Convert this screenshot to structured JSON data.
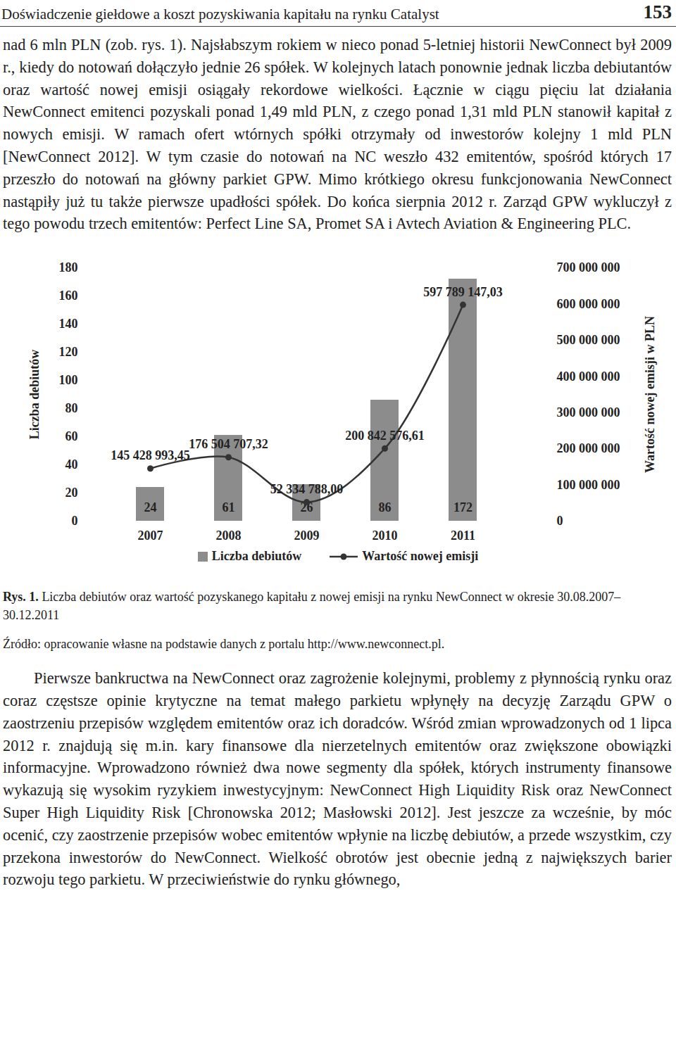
{
  "header": {
    "title": "Doświadczenie giełdowe a koszt pozyskiwania kapitału na rynku Catalyst",
    "page": "153"
  },
  "paragraphs_before": [
    "nad 6 mln PLN (zob. rys. 1). Najsłabszym rokiem w nieco ponad 5-letniej historii NewConnect był 2009 r., kiedy do notowań dołączyło jednie 26 spółek. W kolejnych latach ponownie jednak liczba debiutantów oraz wartość nowej emisji osiągały rekordowe wielkości. Łącznie w ciągu pięciu lat działania NewConnect emitenci pozyskali ponad 1,49 mld PLN, z czego ponad 1,31 mld PLN stanowił kapitał z nowych emisji. W ramach ofert wtórnych spółki otrzymały od inwestorów kolejny 1 mld PLN [NewConnect 2012]. W tym czasie do notowań na NC weszło 432 emitentów, spośród których 17 przeszło do notowań na główny parkiet GPW. Mimo krótkiego okresu funkcjonowania NewConnect nastąpiły już tu także pierwsze upadłości spółek. Do końca sierpnia 2012 r. Zarząd GPW wykluczył z tego powodu trzech emitentów: Perfect Line SA, Promet SA i Avtech Aviation & Engineering PLC."
  ],
  "chart_data": {
    "type": "bar",
    "categories": [
      "2007",
      "2008",
      "2009",
      "2010",
      "2011"
    ],
    "ylabel": "Liczba debiutów",
    "y2label": "Wartość nowej emisji w PLN",
    "ylim": [
      0,
      180
    ],
    "yticks": [
      0,
      20,
      40,
      60,
      80,
      100,
      120,
      140,
      160,
      180
    ],
    "y2lim": [
      0,
      700000000
    ],
    "y2ticks": [
      0,
      {
        "value": 100000000,
        "label": "100 000 000"
      },
      {
        "value": 200000000,
        "label": "200 000 000"
      },
      {
        "value": 300000000,
        "label": "300 000 000"
      },
      {
        "value": 400000000,
        "label": "400 000 000"
      },
      {
        "value": 500000000,
        "label": "500 000 000"
      },
      {
        "value": 600000000,
        "label": "600 000 000"
      },
      {
        "value": 700000000,
        "label": "700 000 000"
      }
    ],
    "grid": false,
    "legend": "bottom",
    "data_labels": true,
    "series": [
      {
        "name": "Liczba debiutów",
        "type": "bar",
        "color": "#8c8c8c",
        "values": [
          24,
          61,
          26,
          86,
          172
        ]
      },
      {
        "name": "Wartość nowej emisji",
        "type": "line",
        "axis": "y2",
        "color": "#333333",
        "marker": "circle",
        "line_style": "solid",
        "values": [
          145428993.45,
          176504707.32,
          52334788.0,
          200842576.61,
          597789147.03
        ],
        "value_labels": [
          "145 428 993,45",
          "176 504 707,32",
          "52 334 788,00",
          "200 842 576,61",
          "597 789 147,03"
        ]
      }
    ]
  },
  "caption": {
    "label": "Rys. 1.",
    "text": "Liczba debiutów oraz wartość pozyskanego kapitału z nowej emisji na rynku NewConnect w okresie 30.08.2007–30.12.2011"
  },
  "source": "Źródło: opracowanie własne na podstawie danych z portalu http://www.newconnect.pl.",
  "paragraphs_after": [
    "Pierwsze bankructwa na NewConnect oraz zagrożenie kolejnymi, problemy z płynnością rynku oraz coraz częstsze opinie krytyczne na temat małego parkietu wpłynęły na decyzję Zarządu GPW o zaostrzeniu przepisów względem emitentów oraz ich doradców. Wśród zmian wprowadzonych od 1 lipca 2012 r. znajdują się m.in. kary finansowe dla nierzetelnych emitentów oraz zwiększone obowiązki informacyjne. Wprowadzono również dwa nowe segmenty dla spółek, których instrumenty finansowe wykazują się wysokim ryzykiem inwestycyjnym: NewConnect High Liquidity Risk oraz NewConnect Super High Liquidity Risk [Chronowska 2012; Masłowski 2012]. Jest jeszcze za wcześnie, by móc ocenić, czy zaostrzenie przepisów wobec emitentów wpłynie na liczbę debiutów, a przede wszystkim, czy przekona inwestorów do NewConnect. Wielkość obrotów jest obecnie jedną z największych barier rozwoju tego parkietu. W przeciwieństwie do rynku głównego,"
  ]
}
